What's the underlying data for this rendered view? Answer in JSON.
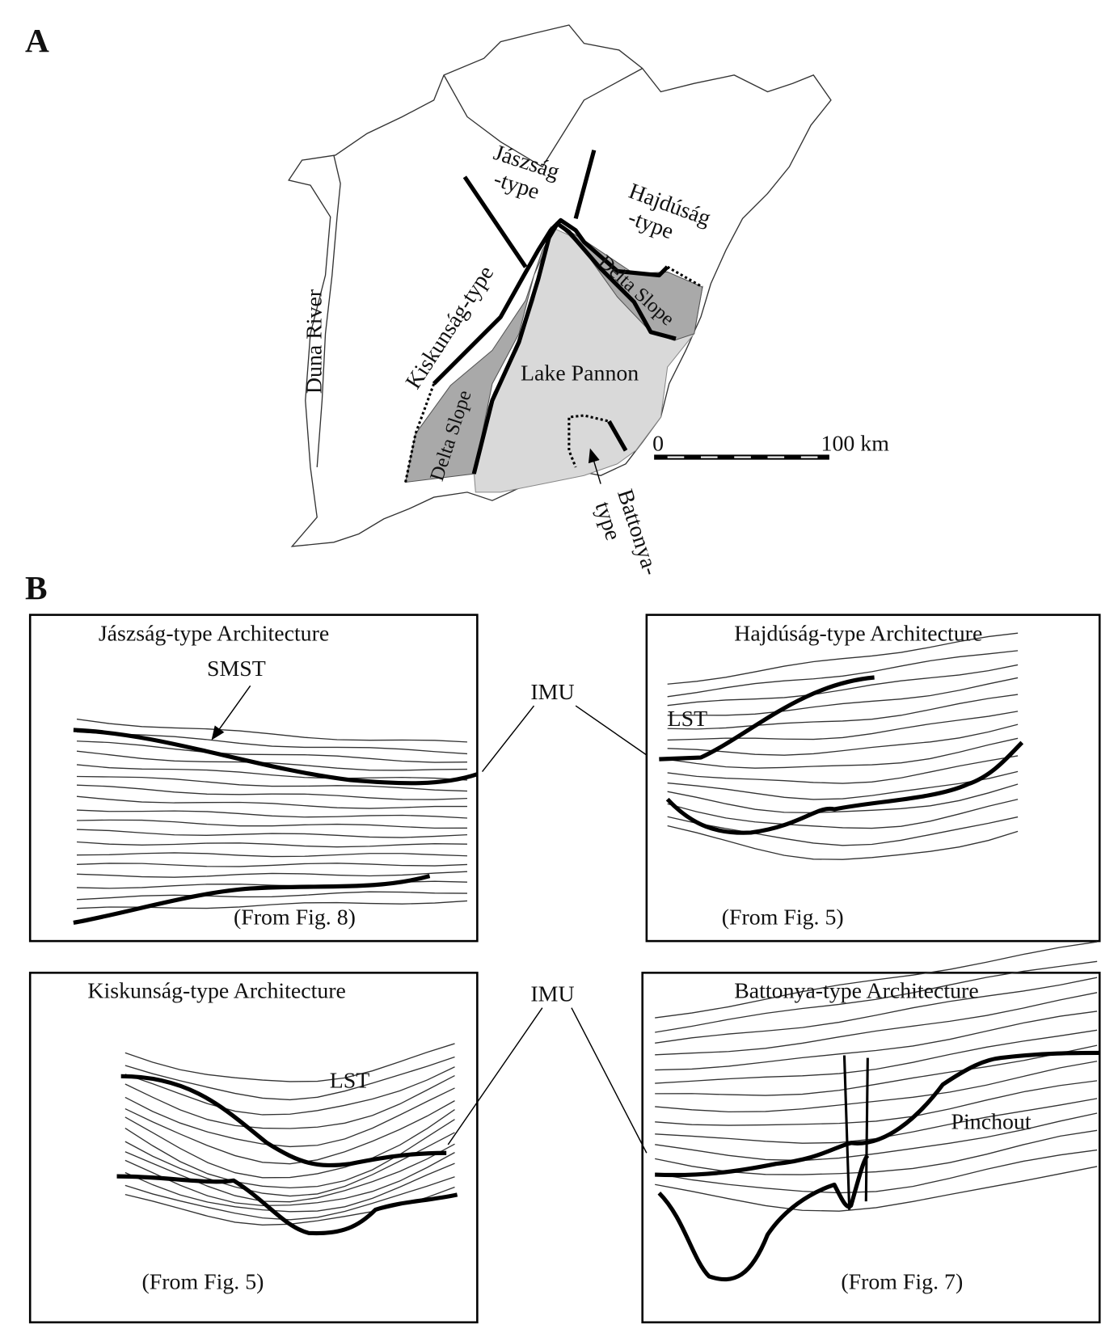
{
  "panel_a": {
    "label": "A",
    "jaszsag": [
      "Jászság",
      "-type"
    ],
    "hajdusag": [
      "Hajdúság",
      "-type"
    ],
    "kiskunsag": "Kiskunság-type",
    "duna": "Duna River",
    "delta_slope_left": "Delta Slope",
    "delta_slope_right": "Delta Slope",
    "lake": "Lake Pannon",
    "battonya": [
      "Battonya-",
      "type"
    ],
    "scale_start": "0",
    "scale_end": "100 km"
  },
  "panel_b": {
    "label": "B",
    "imu_top": "IMU",
    "imu_bottom": "IMU",
    "jaszsag": {
      "title": "Jászság-type Architecture",
      "smst": "SMST",
      "source": "(From Fig. 8)"
    },
    "hajdusag": {
      "title": "Hajdúság-type Architecture",
      "lst": "LST",
      "source": "(From Fig. 5)"
    },
    "kiskunsag": {
      "title": "Kiskunság-type Architecture",
      "lst": "LST",
      "source": "(From Fig. 5)"
    },
    "battonya": {
      "title": "Battonya-type Architecture",
      "pinchout": "Pinchout",
      "source": "(From Fig. 7)"
    }
  }
}
